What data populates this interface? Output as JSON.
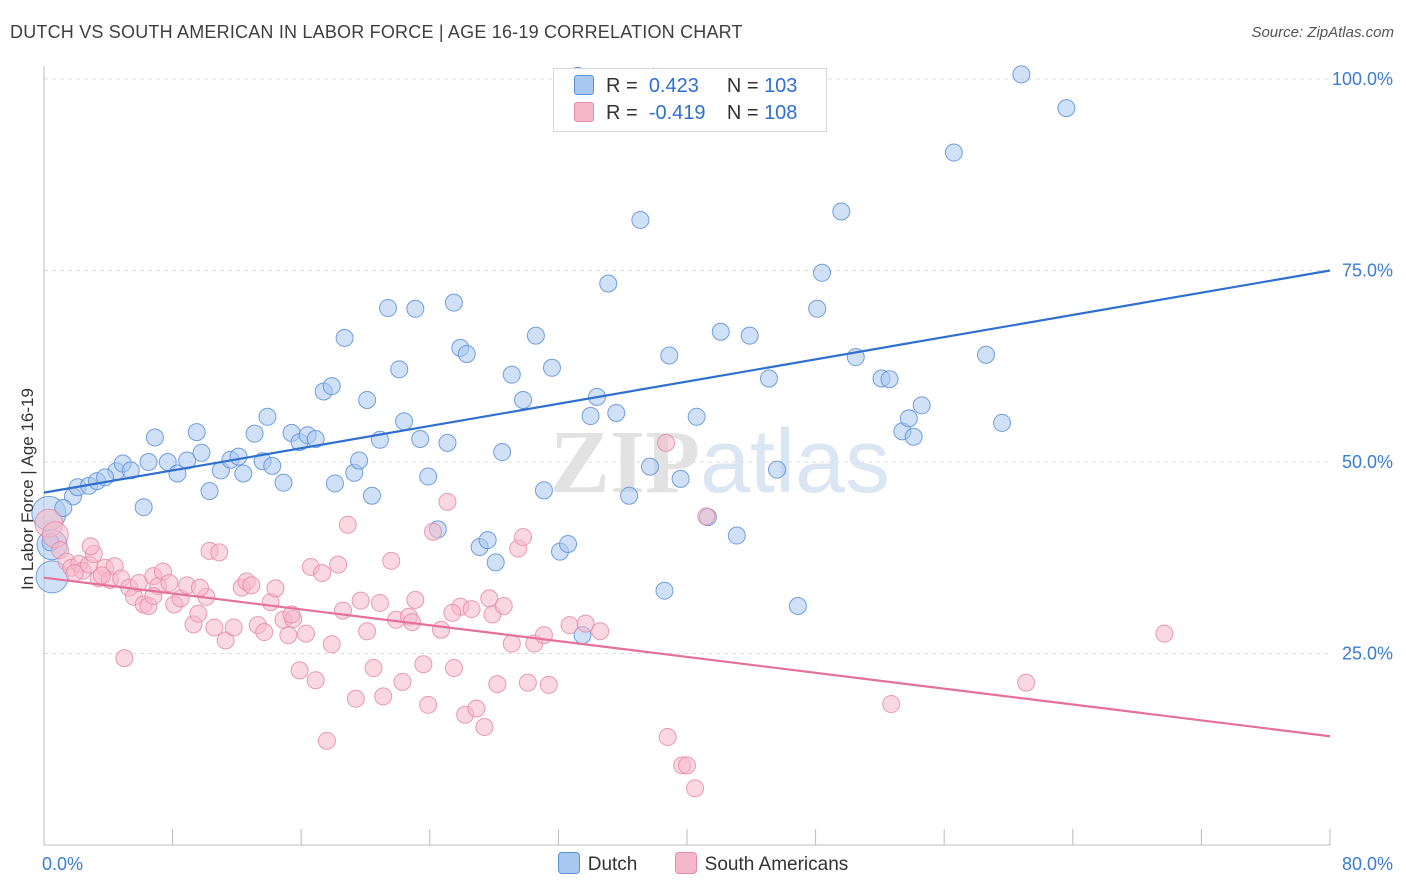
{
  "title": "DUTCH VS SOUTH AMERICAN IN LABOR FORCE | AGE 16-19 CORRELATION CHART",
  "source": "Source: ZipAtlas.com",
  "watermark": "ZIPatlas",
  "legend": {
    "rows": [
      {
        "r_label": "R =",
        "r_value": "0.423",
        "n_label": "N =",
        "n_value": "103",
        "color": "#a9c8f0"
      },
      {
        "r_label": "R =",
        "r_value": "-0.419",
        "n_label": "N =",
        "n_value": "108",
        "color": "#f5b8cb"
      }
    ]
  },
  "bottom_legend": [
    "Dutch",
    "South Americans"
  ],
  "chart_data": {
    "type": "scatter",
    "title": "DUTCH VS SOUTH AMERICAN IN LABOR FORCE | AGE 16-19 CORRELATION CHART",
    "xlabel": "",
    "ylabel": "In Labor Force | Age 16-19",
    "xlim": [
      0,
      80
    ],
    "ylim": [
      0,
      105
    ],
    "x_tick_labels": [
      "0.0%",
      "80.0%"
    ],
    "y_tick_labels": [
      "100.0%",
      "75.0%",
      "50.0%",
      "25.0%"
    ],
    "y_ticks": [
      100,
      75,
      50,
      25
    ],
    "grid": true,
    "legend_position": "top-center",
    "series": [
      {
        "name": "Dutch",
        "color": "#5b8fd8",
        "fill": "#a9c8f0",
        "trend": {
          "x": [
            0,
            80
          ],
          "y": [
            46,
            75
          ],
          "color": "#2f6fd0"
        },
        "points": [
          [
            0.3,
            43.3
          ],
          [
            0.5,
            39.2
          ],
          [
            0.5,
            35
          ],
          [
            1.8,
            45.5
          ],
          [
            2.1,
            46.7
          ],
          [
            2.8,
            46.9
          ],
          [
            3.3,
            47.5
          ],
          [
            4.5,
            48.8
          ],
          [
            4.9,
            49.8
          ],
          [
            5.4,
            48.9
          ],
          [
            6.2,
            44.1
          ],
          [
            6.5,
            50
          ],
          [
            6.9,
            53.2
          ],
          [
            7.7,
            50
          ],
          [
            8.3,
            48.5
          ],
          [
            8.9,
            50.2
          ],
          [
            9.5,
            53.9
          ],
          [
            9.8,
            51.2
          ],
          [
            10.3,
            46.2
          ],
          [
            11,
            48.9
          ],
          [
            11.6,
            50.3
          ],
          [
            12.1,
            50.7
          ],
          [
            12.4,
            48.5
          ],
          [
            13.1,
            53.7
          ],
          [
            13.6,
            50.1
          ],
          [
            13.9,
            55.9
          ],
          [
            14.2,
            49.5
          ],
          [
            14.9,
            47.3
          ],
          [
            15.4,
            53.8
          ],
          [
            15.9,
            52.6
          ],
          [
            16.4,
            53.5
          ],
          [
            16.9,
            53
          ],
          [
            17.4,
            59.2
          ],
          [
            17.9,
            59.9
          ],
          [
            18.1,
            47.2
          ],
          [
            18.7,
            66.2
          ],
          [
            19.3,
            48.6
          ],
          [
            19.6,
            50.2
          ],
          [
            20.1,
            58.1
          ],
          [
            20.4,
            45.6
          ],
          [
            20.9,
            52.9
          ],
          [
            21.4,
            70.1
          ],
          [
            22.1,
            62.1
          ],
          [
            22.4,
            55.3
          ],
          [
            23.1,
            70
          ],
          [
            23.4,
            53
          ],
          [
            23.9,
            48.1
          ],
          [
            24.5,
            41.2
          ],
          [
            25.1,
            52.5
          ],
          [
            25.5,
            70.8
          ],
          [
            25.9,
            64.9
          ],
          [
            26.3,
            64.1
          ],
          [
            27.1,
            38.9
          ],
          [
            27.6,
            39.8
          ],
          [
            28.1,
            36.9
          ],
          [
            28.5,
            51.3
          ],
          [
            29.1,
            61.4
          ],
          [
            29.8,
            58.1
          ],
          [
            30.6,
            66.5
          ],
          [
            31.1,
            46.3
          ],
          [
            31.6,
            62.3
          ],
          [
            32.1,
            38.3
          ],
          [
            32.6,
            39.3
          ],
          [
            33.5,
            27.4
          ],
          [
            34,
            56
          ],
          [
            34.4,
            58.5
          ],
          [
            35.1,
            73.3
          ],
          [
            35.6,
            56.4
          ],
          [
            36.4,
            45.6
          ],
          [
            37.1,
            81.6
          ],
          [
            37.7,
            49.4
          ],
          [
            38.6,
            33.2
          ],
          [
            38.9,
            63.9
          ],
          [
            39.6,
            47.8
          ],
          [
            40.6,
            55.9
          ],
          [
            41.3,
            42.8
          ],
          [
            42.1,
            67
          ],
          [
            43.1,
            40.4
          ],
          [
            43.9,
            66.5
          ],
          [
            45.1,
            60.9
          ],
          [
            45.6,
            49
          ],
          [
            46.9,
            31.2
          ],
          [
            48.1,
            70
          ],
          [
            48.4,
            74.7
          ],
          [
            49.6,
            82.7
          ],
          [
            50.5,
            63.7
          ],
          [
            52.1,
            60.9
          ],
          [
            52.6,
            60.8
          ],
          [
            53.4,
            54
          ],
          [
            53.8,
            55.7
          ],
          [
            54.1,
            53.3
          ],
          [
            54.6,
            57.4
          ],
          [
            56.6,
            90.4
          ],
          [
            58.6,
            64
          ],
          [
            59.6,
            55.1
          ],
          [
            60.8,
            100.6
          ],
          [
            63.6,
            96.2
          ],
          [
            33.2,
            100.4
          ],
          [
            37.9,
            100.3
          ],
          [
            0.4,
            39.5
          ],
          [
            3.8,
            48
          ],
          [
            1.2,
            44
          ],
          [
            33.6,
            100.2
          ]
        ],
        "sizes": {
          "0": 34,
          "1": 30,
          "2": 32
        }
      },
      {
        "name": "South Americans",
        "color": "#e58aa8",
        "fill": "#f5b8cb",
        "trend": {
          "x": [
            0,
            80
          ],
          "y": [
            34.9,
            14.2
          ],
          "color": "#e4709b"
        },
        "points": [
          [
            0.3,
            42
          ],
          [
            0.7,
            40.5
          ],
          [
            1,
            38.5
          ],
          [
            1.4,
            37
          ],
          [
            1.7,
            36.2
          ],
          [
            2.2,
            36.7
          ],
          [
            2.4,
            35.8
          ],
          [
            2.8,
            36.6
          ],
          [
            3.1,
            38
          ],
          [
            3.4,
            34.8
          ],
          [
            3.8,
            36.2
          ],
          [
            4.1,
            34.6
          ],
          [
            4.4,
            36.4
          ],
          [
            4.8,
            34.8
          ],
          [
            5,
            24.4
          ],
          [
            5.3,
            33.6
          ],
          [
            5.6,
            32.4
          ],
          [
            5.9,
            34.2
          ],
          [
            6.2,
            31.4
          ],
          [
            6.5,
            31.2
          ],
          [
            6.8,
            35.1
          ],
          [
            7.1,
            33.8
          ],
          [
            7.4,
            35.7
          ],
          [
            7.8,
            34.2
          ],
          [
            8.1,
            31.4
          ],
          [
            8.5,
            32.2
          ],
          [
            8.9,
            33.9
          ],
          [
            9.3,
            28.8
          ],
          [
            9.6,
            30.2
          ],
          [
            10.1,
            32.4
          ],
          [
            10.3,
            38.4
          ],
          [
            10.6,
            28.4
          ],
          [
            10.9,
            38.2
          ],
          [
            11.3,
            26.7
          ],
          [
            11.8,
            28.4
          ],
          [
            12.3,
            33.6
          ],
          [
            12.6,
            34.4
          ],
          [
            12.9,
            33.9
          ],
          [
            13.3,
            28.7
          ],
          [
            13.7,
            27.8
          ],
          [
            14.1,
            31.7
          ],
          [
            14.4,
            33.5
          ],
          [
            14.9,
            29.4
          ],
          [
            15.2,
            27.4
          ],
          [
            15.5,
            29.5
          ],
          [
            15.9,
            22.8
          ],
          [
            16.3,
            27.6
          ],
          [
            16.6,
            36.3
          ],
          [
            16.9,
            21.5
          ],
          [
            17.3,
            35.5
          ],
          [
            17.6,
            13.6
          ],
          [
            17.9,
            26.2
          ],
          [
            18.3,
            36.6
          ],
          [
            18.6,
            30.6
          ],
          [
            18.9,
            41.8
          ],
          [
            19.4,
            19.1
          ],
          [
            19.7,
            31.9
          ],
          [
            20.1,
            27.9
          ],
          [
            20.5,
            23.1
          ],
          [
            20.9,
            31.6
          ],
          [
            21.1,
            19.4
          ],
          [
            21.6,
            37.1
          ],
          [
            21.9,
            29.4
          ],
          [
            22.3,
            21.3
          ],
          [
            22.7,
            29.8
          ],
          [
            23.1,
            32
          ],
          [
            23.6,
            23.6
          ],
          [
            23.9,
            18.3
          ],
          [
            24.2,
            40.9
          ],
          [
            24.7,
            28.1
          ],
          [
            25.1,
            44.8
          ],
          [
            25.5,
            23.1
          ],
          [
            25.9,
            31.1
          ],
          [
            26.2,
            17
          ],
          [
            26.6,
            30.8
          ],
          [
            26.9,
            17.8
          ],
          [
            27.4,
            15.4
          ],
          [
            27.7,
            32.2
          ],
          [
            27.9,
            30.1
          ],
          [
            28.2,
            21
          ],
          [
            28.6,
            31.2
          ],
          [
            29.1,
            26.3
          ],
          [
            29.5,
            38.7
          ],
          [
            29.8,
            40.2
          ],
          [
            30.1,
            21.2
          ],
          [
            30.5,
            26.3
          ],
          [
            31.1,
            27.4
          ],
          [
            31.4,
            20.9
          ],
          [
            32.7,
            28.7
          ],
          [
            33.7,
            28.9
          ],
          [
            34.6,
            27.9
          ],
          [
            38.8,
            14.1
          ],
          [
            39.7,
            10.4
          ],
          [
            40,
            10.4
          ],
          [
            40.5,
            7.4
          ],
          [
            41.2,
            42.9
          ],
          [
            52.7,
            18.4
          ],
          [
            61.1,
            21.2
          ],
          [
            69.7,
            27.6
          ],
          [
            2.9,
            39
          ],
          [
            1.9,
            35.5
          ],
          [
            3.6,
            35.2
          ],
          [
            6.8,
            32.5
          ],
          [
            9.7,
            33.6
          ],
          [
            15.4,
            30.1
          ],
          [
            22.9,
            29.1
          ],
          [
            38.7,
            52.5
          ],
          [
            25.4,
            30.3
          ]
        ],
        "sizes": {
          "0": 28,
          "1": 26
        }
      }
    ]
  }
}
